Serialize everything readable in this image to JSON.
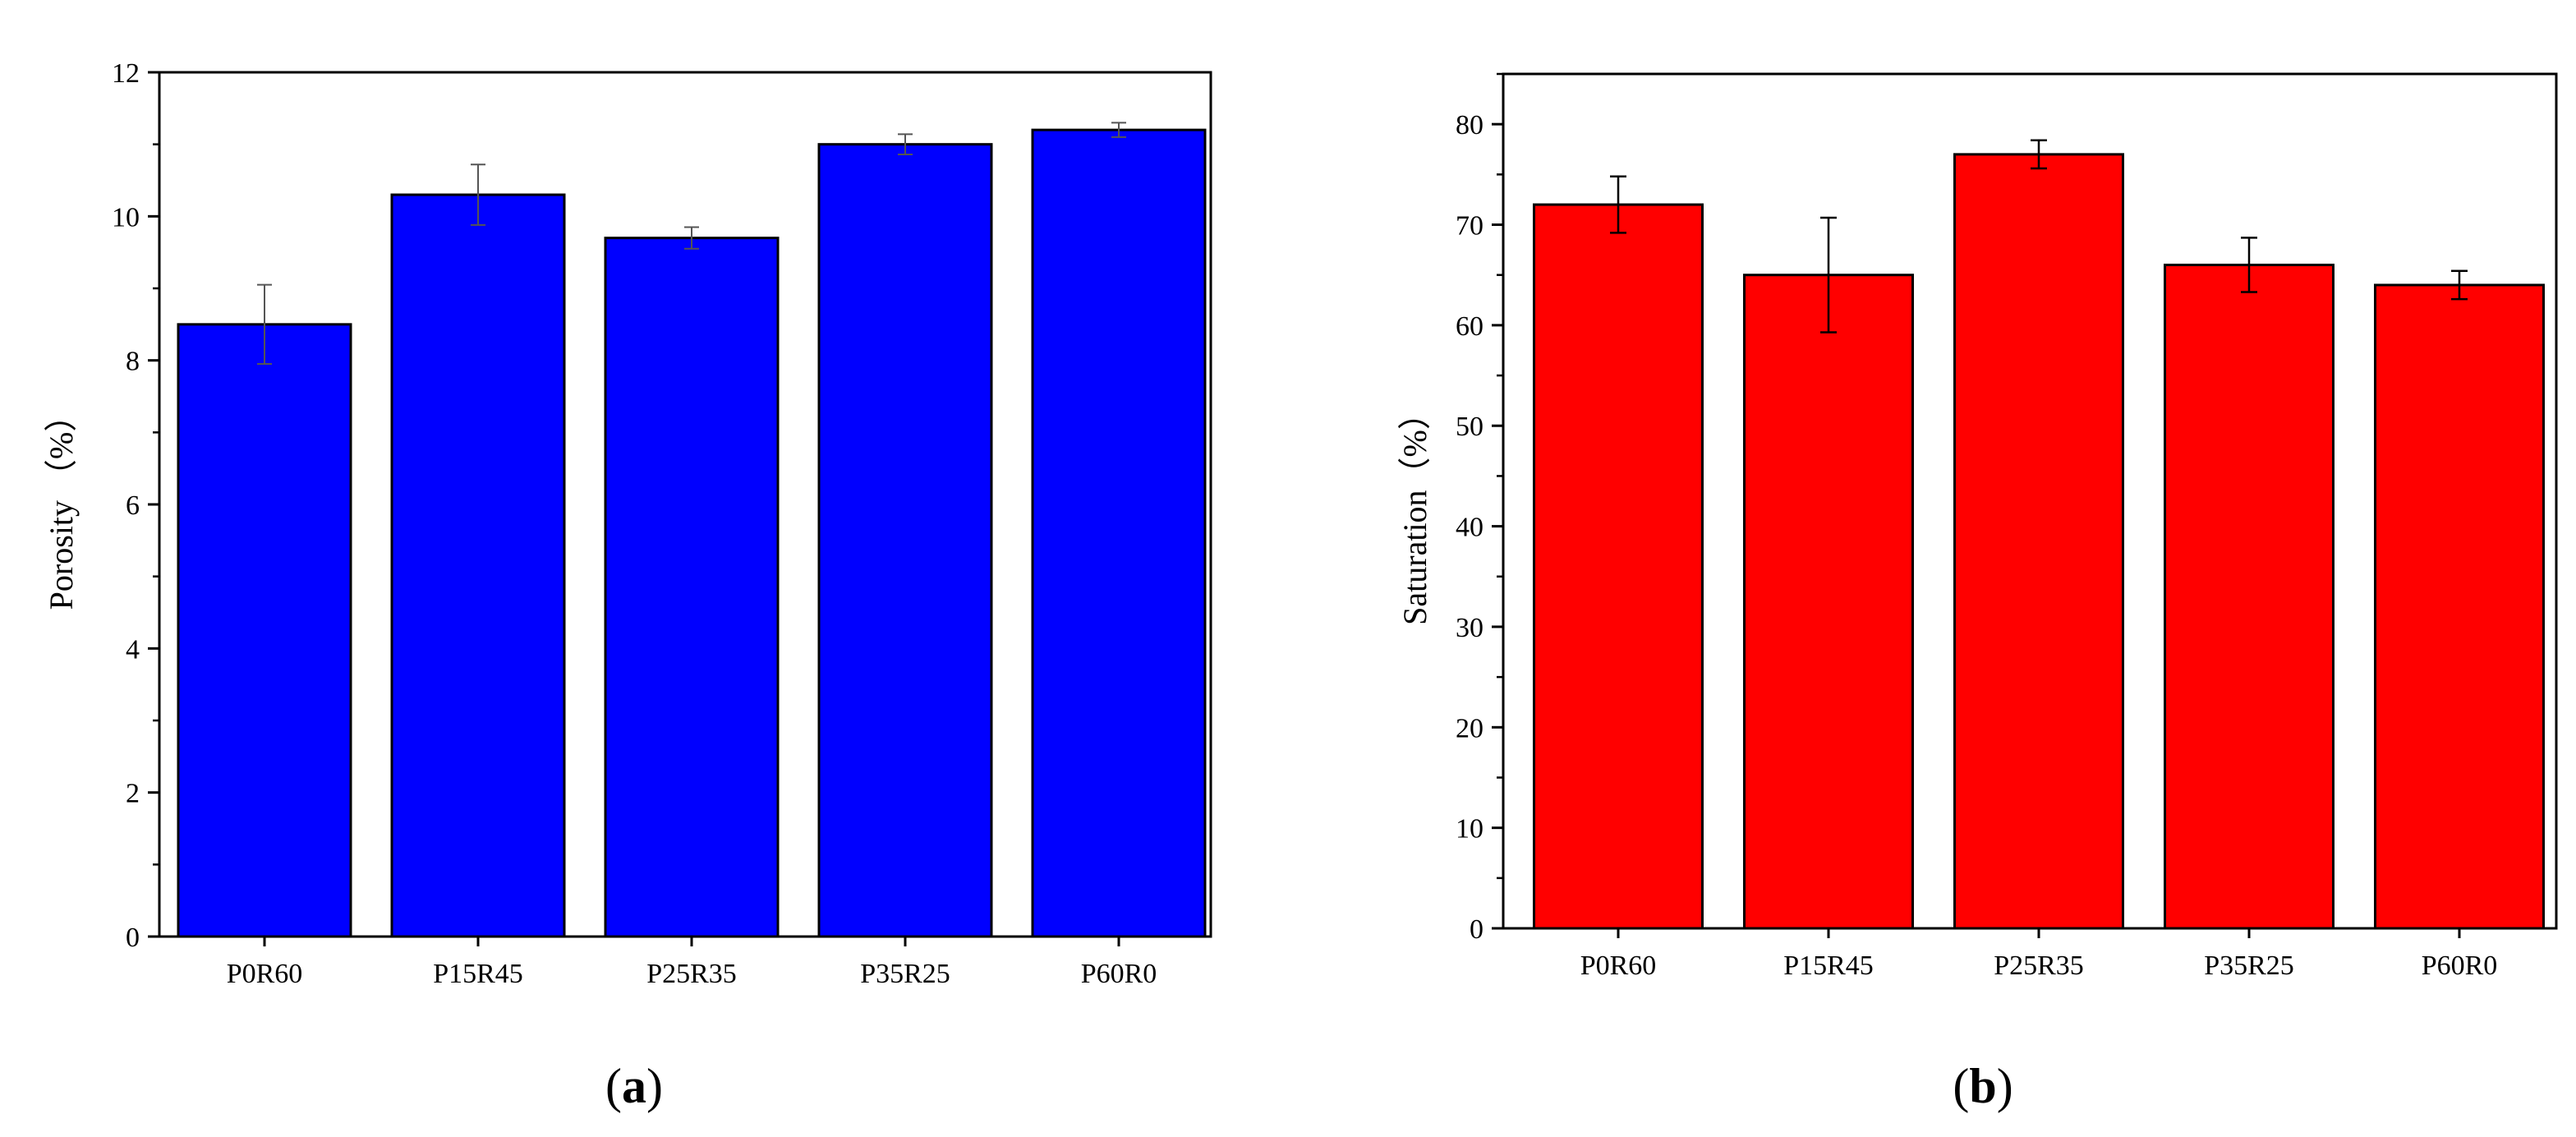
{
  "chart_data": [
    {
      "type": "bar",
      "panel_label": {
        "open": "(",
        "letter": "a",
        "close": ")"
      },
      "ylabel": "Porosity （%）",
      "categories": [
        "P0R60",
        "P15R45",
        "P25R35",
        "P35R25",
        "P60R0"
      ],
      "values": [
        8.5,
        10.3,
        9.7,
        11.0,
        11.2
      ],
      "errors": [
        0.55,
        0.42,
        0.15,
        0.14,
        0.1
      ],
      "ylim": [
        0,
        12
      ],
      "yticks": [
        0,
        2,
        4,
        6,
        8,
        10,
        12
      ],
      "bar_color": "#0000FF",
      "error_color": "#555555",
      "grid": false
    },
    {
      "type": "bar",
      "panel_label": {
        "open": "(",
        "letter": "b",
        "close": ")"
      },
      "ylabel": "Saturation（%）",
      "categories": [
        "P0R60",
        "P15R45",
        "P25R35",
        "P35R25",
        "P60R0"
      ],
      "values": [
        72,
        65,
        77,
        66,
        64
      ],
      "errors": [
        2.8,
        5.7,
        1.4,
        2.7,
        1.4
      ],
      "ylim": [
        0,
        85
      ],
      "yticks": [
        0,
        10,
        20,
        30,
        40,
        50,
        60,
        70,
        80
      ],
      "bar_color": "#FF0000",
      "error_color": "#000000",
      "grid": false
    }
  ]
}
